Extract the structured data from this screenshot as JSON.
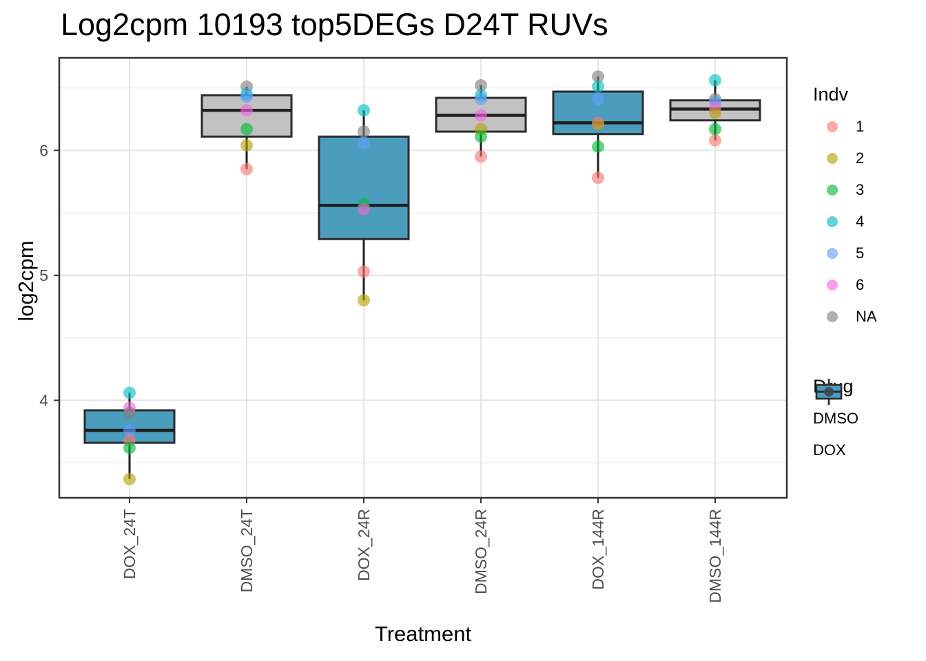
{
  "chart_data": {
    "type": "boxplot",
    "title": "Log2cpm 10193 top5DEGs D24T RUVs",
    "xlabel": "Treatment",
    "ylabel": "log2cpm",
    "y_ticks": [
      4,
      5,
      6
    ],
    "y_minor_ticks": [
      3.5,
      4.5,
      5.5,
      6.5
    ],
    "ylim": [
      3.22,
      6.74
    ],
    "grid": true,
    "categories": [
      "DOX_24T",
      "DMSO_24T",
      "DOX_24R",
      "DMSO_24R",
      "DOX_144R",
      "DMSO_144R"
    ],
    "groups": [
      {
        "treatment": "DOX_24T",
        "drug": "DOX",
        "whisker_low": 3.37,
        "q1": 3.66,
        "median": 3.76,
        "q3": 3.92,
        "whisker_high": 4.06,
        "points": [
          {
            "indv": "4",
            "value": 4.06
          },
          {
            "indv": "6",
            "value": 3.94
          },
          {
            "indv": "NA",
            "value": 3.9
          },
          {
            "indv": "5",
            "value": 3.76
          },
          {
            "indv": "1",
            "value": 3.68
          },
          {
            "indv": "3",
            "value": 3.62
          },
          {
            "indv": "2",
            "value": 3.37
          }
        ]
      },
      {
        "treatment": "DMSO_24T",
        "drug": "DMSO",
        "whisker_low": 5.85,
        "q1": 6.11,
        "median": 6.32,
        "q3": 6.44,
        "whisker_high": 6.51,
        "points": [
          {
            "indv": "NA",
            "value": 6.51
          },
          {
            "indv": "4",
            "value": 6.45
          },
          {
            "indv": "5",
            "value": 6.43
          },
          {
            "indv": "6",
            "value": 6.32
          },
          {
            "indv": "3",
            "value": 6.17
          },
          {
            "indv": "2",
            "value": 6.04
          },
          {
            "indv": "1",
            "value": 5.85
          }
        ]
      },
      {
        "treatment": "DOX_24R",
        "drug": "DOX",
        "whisker_low": 4.8,
        "q1": 5.29,
        "median": 5.56,
        "q3": 6.11,
        "whisker_high": 6.32,
        "points": [
          {
            "indv": "4",
            "value": 6.32
          },
          {
            "indv": "NA",
            "value": 6.15
          },
          {
            "indv": "5",
            "value": 6.06
          },
          {
            "indv": "3",
            "value": 5.57
          },
          {
            "indv": "6",
            "value": 5.53
          },
          {
            "indv": "1",
            "value": 5.03
          },
          {
            "indv": "2",
            "value": 4.8
          }
        ]
      },
      {
        "treatment": "DMSO_24R",
        "drug": "DMSO",
        "whisker_low": 5.95,
        "q1": 6.15,
        "median": 6.28,
        "q3": 6.42,
        "whisker_high": 6.52,
        "points": [
          {
            "indv": "NA",
            "value": 6.52
          },
          {
            "indv": "4",
            "value": 6.44
          },
          {
            "indv": "5",
            "value": 6.41
          },
          {
            "indv": "6",
            "value": 6.28
          },
          {
            "indv": "2",
            "value": 6.17
          },
          {
            "indv": "3",
            "value": 6.11
          },
          {
            "indv": "1",
            "value": 5.95
          }
        ]
      },
      {
        "treatment": "DOX_144R",
        "drug": "DOX",
        "whisker_low": 5.78,
        "q1": 6.13,
        "median": 6.22,
        "q3": 6.47,
        "whisker_high": 6.59,
        "points": [
          {
            "indv": "NA",
            "value": 6.59
          },
          {
            "indv": "4",
            "value": 6.51
          },
          {
            "indv": "5",
            "value": 6.41
          },
          {
            "indv": "6",
            "value": 6.22
          },
          {
            "indv": "2",
            "value": 6.21
          },
          {
            "indv": "3",
            "value": 6.03
          },
          {
            "indv": "1",
            "value": 5.78
          }
        ]
      },
      {
        "treatment": "DMSO_144R",
        "drug": "DMSO",
        "whisker_low": 6.08,
        "q1": 6.24,
        "median": 6.33,
        "q3": 6.4,
        "whisker_high": 6.56,
        "points": [
          {
            "indv": "4",
            "value": 6.56
          },
          {
            "indv": "NA",
            "value": 6.41
          },
          {
            "indv": "5",
            "value": 6.39
          },
          {
            "indv": "6",
            "value": 6.34
          },
          {
            "indv": "2",
            "value": 6.3
          },
          {
            "indv": "3",
            "value": 6.17
          },
          {
            "indv": "1",
            "value": 6.08
          }
        ]
      }
    ],
    "legend": {
      "indv": {
        "title": "Indv",
        "items": [
          {
            "label": "1",
            "color": "#F8766D"
          },
          {
            "label": "2",
            "color": "#B79F00"
          },
          {
            "label": "3",
            "color": "#00BA38"
          },
          {
            "label": "4",
            "color": "#00BFC4"
          },
          {
            "label": "5",
            "color": "#619CFF"
          },
          {
            "label": "6",
            "color": "#F564E3"
          },
          {
            "label": "NA",
            "color": "#808080"
          }
        ]
      },
      "drug": {
        "title": "Drug",
        "items": [
          {
            "label": "DMSO",
            "color": "#C2C2C2"
          },
          {
            "label": "DOX",
            "color": "#4A9DBC"
          }
        ]
      }
    },
    "style": {
      "point_opacity": 0.62,
      "box_border_color": "#2B2B2B",
      "median_color": "#1F1F1F",
      "grid_major_color": "#E7E7E7",
      "grid_minor_color": "#F1F1F1",
      "panel_border_color": "#333333",
      "axis_text_color": "#4D4D4D",
      "tick_color": "#333333"
    }
  }
}
